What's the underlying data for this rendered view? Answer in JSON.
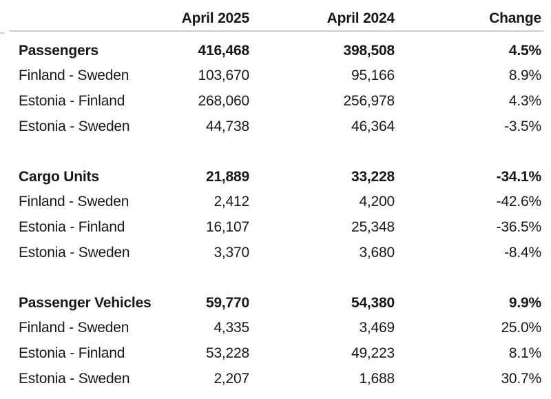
{
  "page": {
    "background": "#ffffff",
    "text_color": "#181818",
    "divider_color": "#d2d2d2"
  },
  "chart_data": {
    "type": "table",
    "title": "",
    "columns": [
      "",
      "April 2025",
      "April 2024",
      "Change"
    ],
    "rows": [
      {
        "style": "bold",
        "cells": [
          "Passengers",
          "416,468",
          "398,508",
          "4.5%"
        ]
      },
      {
        "style": "regular",
        "cells": [
          "Finland - Sweden",
          "103,670",
          "95,166",
          "8.9%"
        ]
      },
      {
        "style": "regular",
        "cells": [
          "Estonia - Finland",
          "268,060",
          "256,978",
          "4.3%"
        ]
      },
      {
        "style": "regular",
        "cells": [
          "Estonia - Sweden",
          "44,738",
          "46,364",
          "-3.5%"
        ]
      },
      {
        "style": "bold",
        "cells": [
          "Cargo Units",
          "21,889",
          "33,228",
          "-34.1%"
        ]
      },
      {
        "style": "regular",
        "cells": [
          "Finland - Sweden",
          "2,412",
          "4,200",
          "-42.6%"
        ]
      },
      {
        "style": "regular",
        "cells": [
          "Estonia - Finland",
          "16,107",
          "25,348",
          "-36.5%"
        ]
      },
      {
        "style": "regular",
        "cells": [
          "Estonia - Sweden",
          "3,370",
          "3,680",
          "-8.4%"
        ]
      },
      {
        "style": "bold",
        "cells": [
          "Passenger Vehicles",
          "59,770",
          "54,380",
          "9.9%"
        ]
      },
      {
        "style": "regular",
        "cells": [
          "Finland - Sweden",
          "4,335",
          "3,469",
          "25.0%"
        ]
      },
      {
        "style": "regular",
        "cells": [
          "Estonia - Finland",
          "53,228",
          "49,223",
          "8.1%"
        ]
      },
      {
        "style": "regular",
        "cells": [
          "Estonia - Sweden",
          "2,207",
          "1,688",
          "30.7%"
        ]
      }
    ]
  }
}
